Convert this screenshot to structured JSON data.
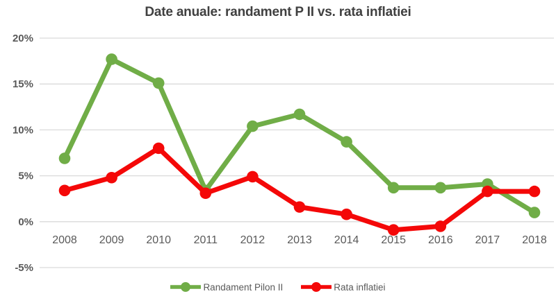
{
  "title": "Date anuale: randament P II vs. rata inflatiei",
  "chart_data": {
    "type": "line",
    "title": "Date anuale: randament P II vs. rata inflatiei",
    "categories": [
      "2008",
      "2009",
      "2010",
      "2011",
      "2012",
      "2013",
      "2014",
      "2015",
      "2016",
      "2017",
      "2018"
    ],
    "series": [
      {
        "name": "Randament Pilon II",
        "color": "#70ad47",
        "values": [
          6.9,
          17.7,
          15.1,
          3.4,
          10.4,
          11.7,
          8.7,
          3.7,
          3.7,
          4.1,
          1.0
        ]
      },
      {
        "name": "Rata inflatiei",
        "color": "#f40808",
        "values": [
          3.4,
          4.8,
          8.0,
          3.1,
          4.9,
          1.6,
          0.8,
          -0.9,
          -0.5,
          3.3,
          3.3
        ]
      }
    ],
    "xlabel": "",
    "ylabel": "",
    "ylim": [
      -5,
      20
    ],
    "ytick_values": [
      20,
      15,
      10,
      5,
      0,
      -5
    ],
    "ytick_labels": [
      "20%",
      "15%",
      "10%",
      "5%",
      "0%",
      "-5%"
    ],
    "grid": true,
    "legend_position": "bottom"
  },
  "colors": {
    "grid": "#d9d9d9",
    "title_text": "#404040",
    "axis_text": "#595959",
    "background": "#ffffff"
  }
}
